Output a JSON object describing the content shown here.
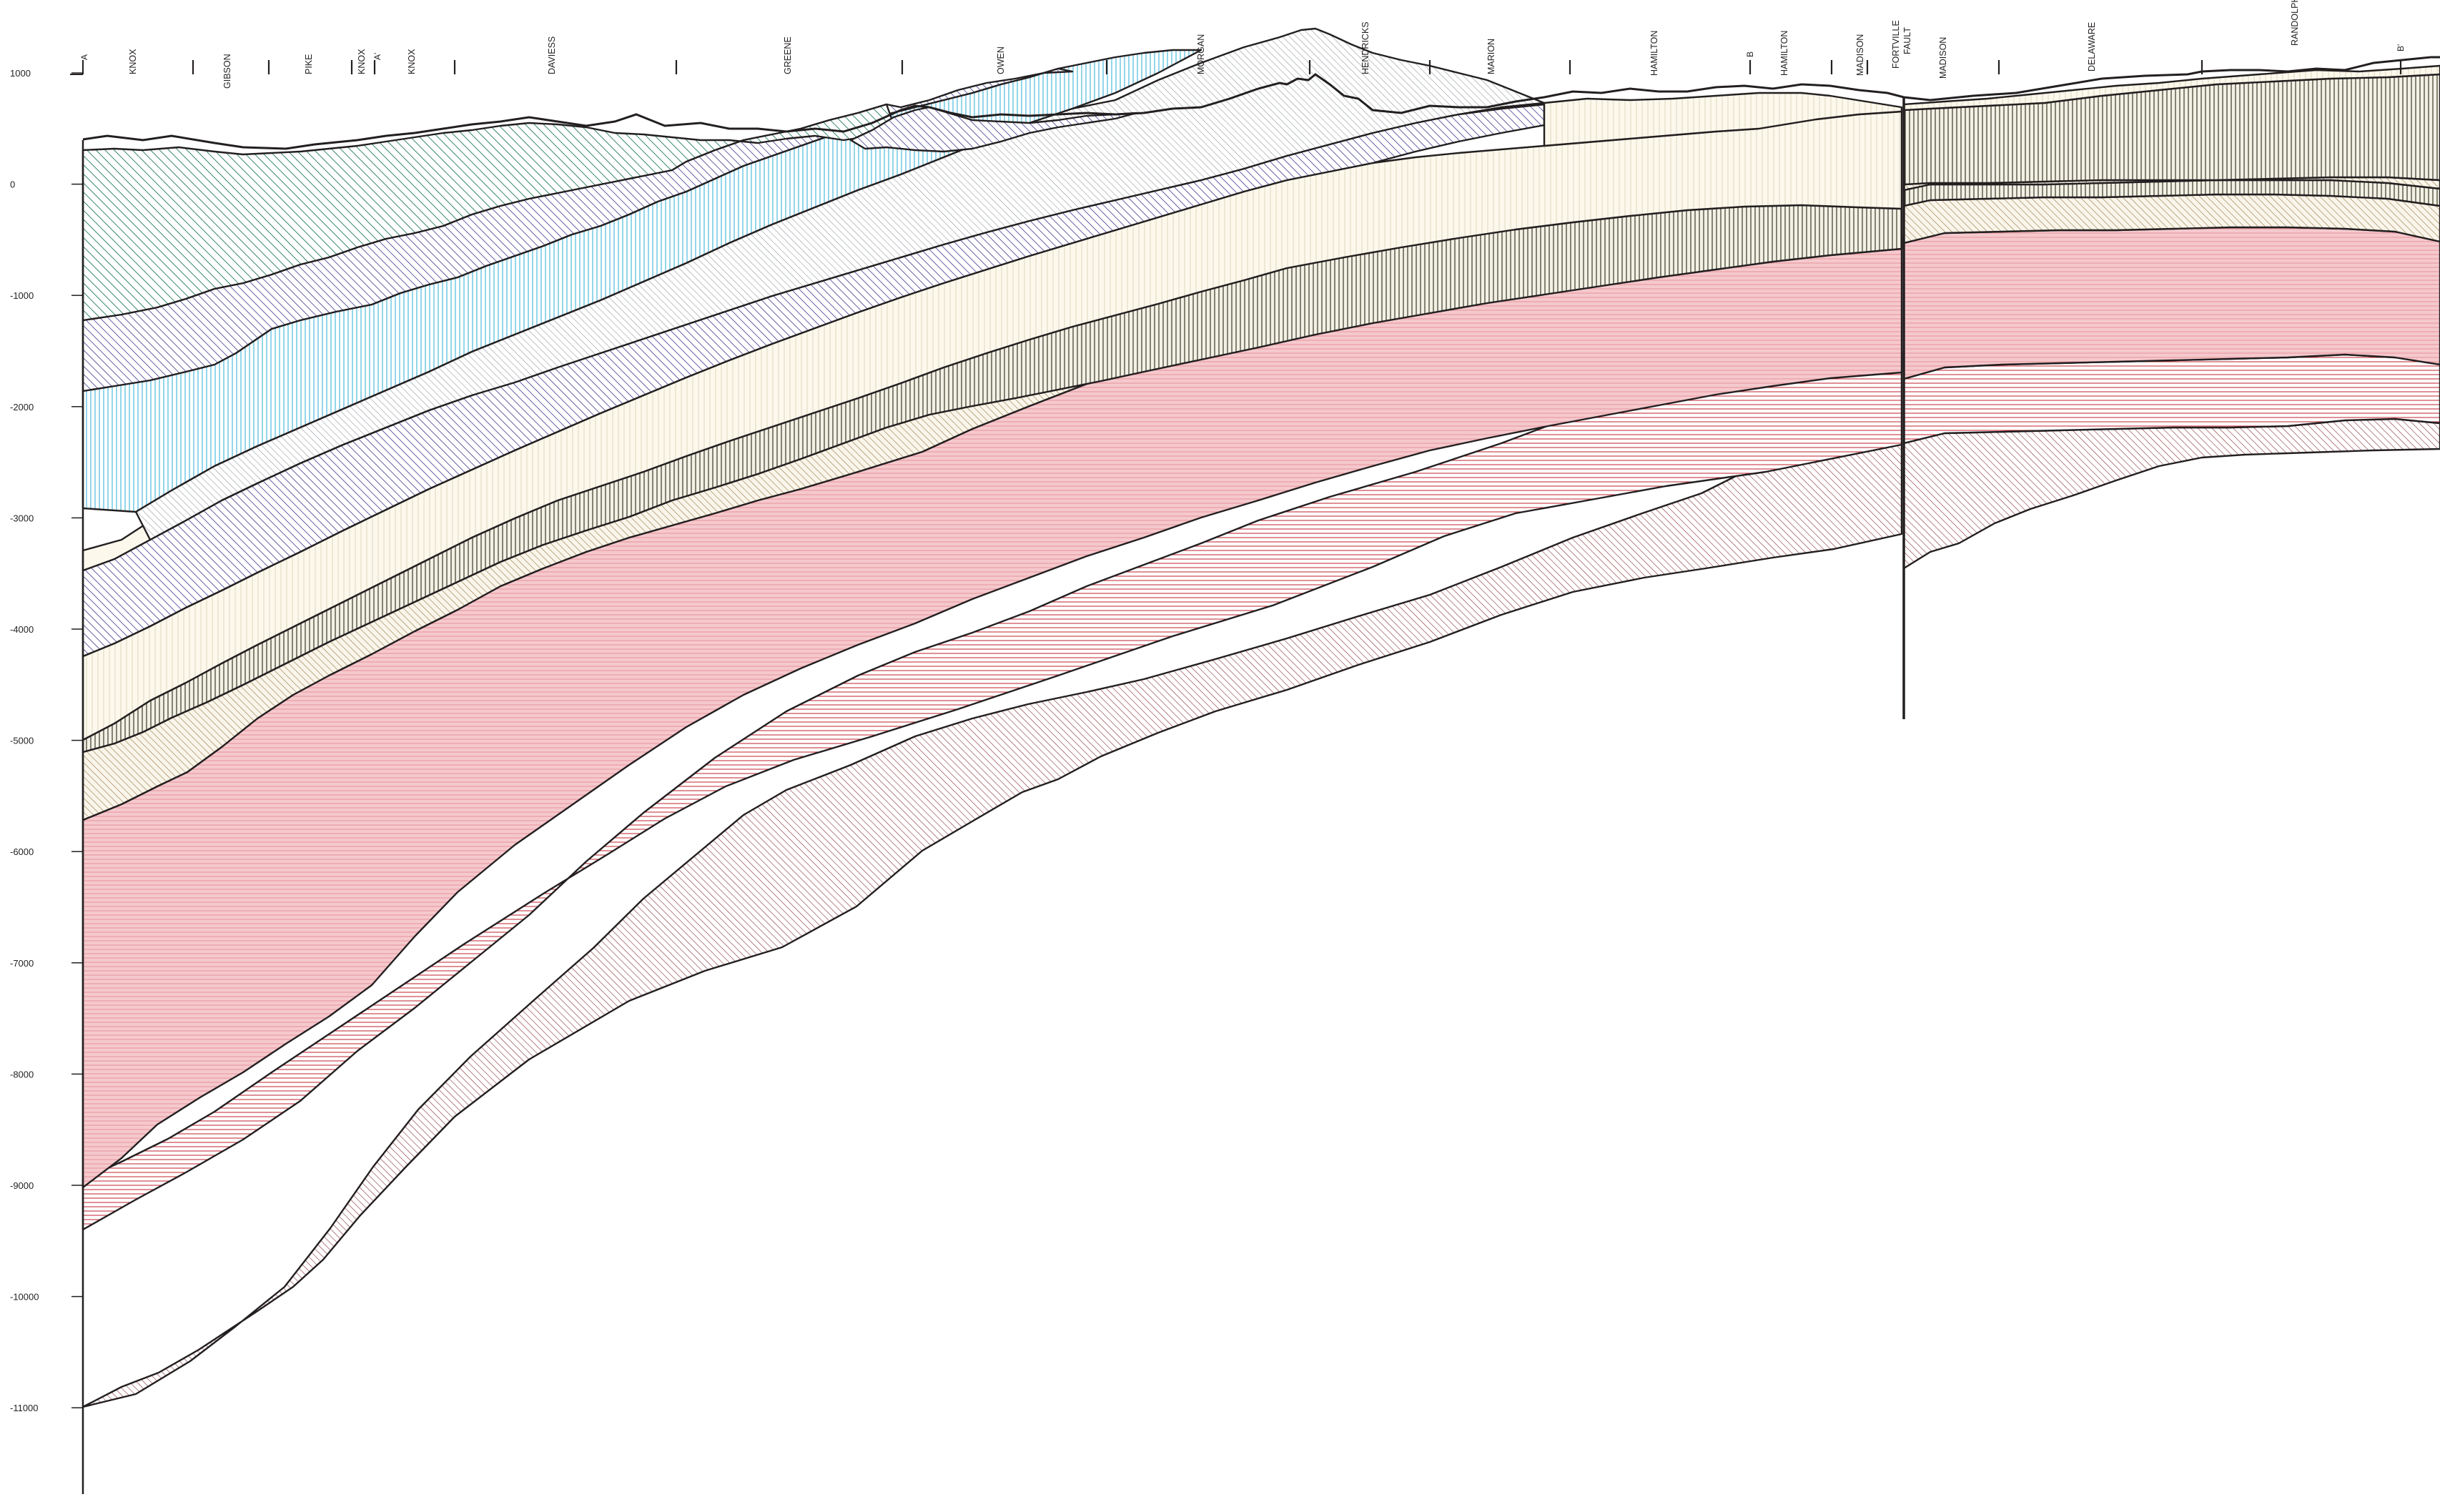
{
  "figure": {
    "elevation_ticks": [
      "1000",
      "0",
      "-1000",
      "-2000",
      "-3000",
      "-4000",
      "-5000",
      "-6000",
      "-7000",
      "-8000",
      "-9000",
      "-10000",
      "-11000"
    ],
    "counties": [
      "KNOX",
      "GIBSON",
      "PIKE",
      "KNOX",
      "KNOX",
      "DAVIESS",
      "GREENE",
      "OWEN",
      "MORGAN",
      "HENDRICKS",
      "MARION",
      "HAMILTON",
      "HAMILTON",
      "MADISON",
      "MADISON",
      "DELAWARE",
      "RANDOLPH"
    ],
    "section_endpoints": [
      "A",
      "A'",
      "B",
      "B'"
    ],
    "fault": {
      "line1": "FORTVILLE",
      "line2": "FAULT"
    },
    "colors": {
      "ink": "#231f20",
      "green": "#1f7a5a",
      "purple": "#4a4398",
      "cyan": "#5bbfe0",
      "gray": "#8a8f96",
      "cream_bg": "#fcf8ec",
      "cream_line": "#c9c2a5",
      "olive": "#55523f",
      "tan": "#9a8053",
      "pink_bg": "#f5c9cd",
      "red_line": "#d7303c",
      "maroon": "#8a2f35"
    }
  }
}
